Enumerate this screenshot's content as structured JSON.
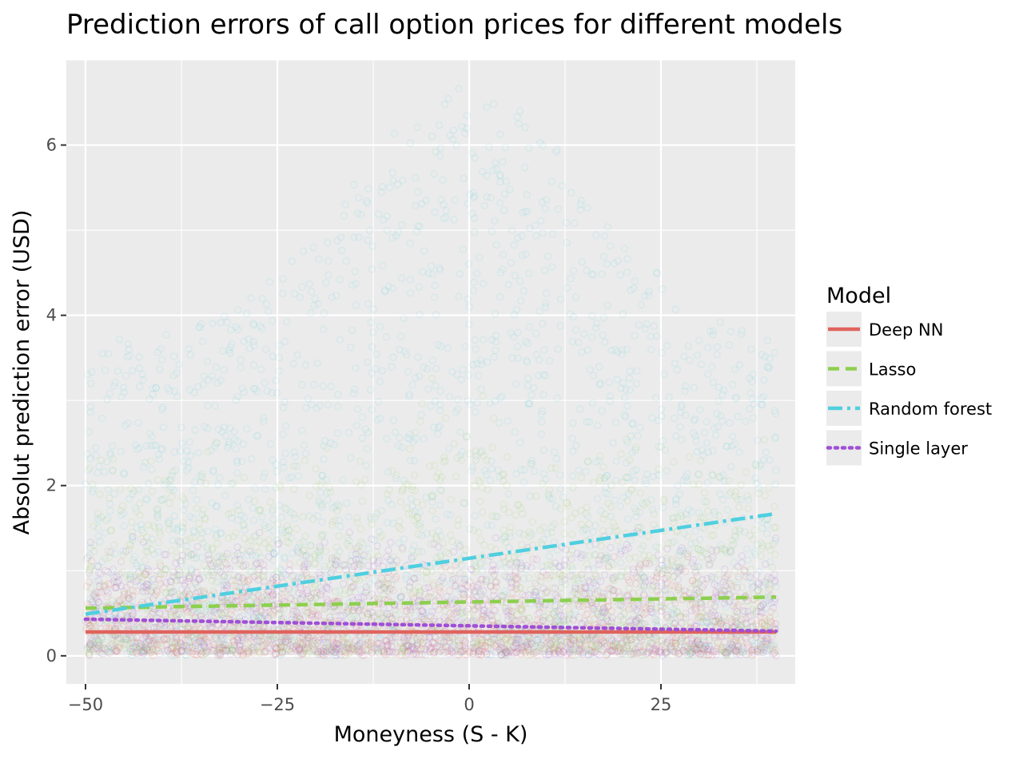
{
  "chart_data": {
    "type": "scatter",
    "title": "Prediction errors of call option prices for different models",
    "xlabel": "Moneyness (S - K)",
    "ylabel": "Absolut prediction error (USD)",
    "xlim": [
      -52.5,
      42.5
    ],
    "ylim": [
      -0.33,
      7.0
    ],
    "x_ticks": [
      -50,
      -25,
      0,
      25
    ],
    "x_tick_labels": [
      "−50",
      "−25",
      "0",
      "25"
    ],
    "y_ticks": [
      0,
      2,
      4,
      6
    ],
    "y_tick_labels": [
      "0",
      "2",
      "4",
      "6"
    ],
    "grid": true,
    "legend": {
      "title": "Model",
      "placement": "right",
      "items": [
        "Deep NN",
        "Lasso",
        "Random forest",
        "Single layer"
      ]
    },
    "series": [
      {
        "name": "Deep NN",
        "color": "#e0635d",
        "line_style": "solid",
        "trend_line": {
          "x": [
            -50,
            40
          ],
          "y": [
            0.28,
            0.28
          ]
        },
        "scatter_spread": {
          "x_range": [
            -50,
            40
          ],
          "typical_max": 1.2
        }
      },
      {
        "name": "Lasso",
        "color": "#8dcf4e",
        "line_style": "dashed",
        "trend_line": {
          "x": [
            -50,
            40
          ],
          "y": [
            0.56,
            0.69
          ]
        },
        "scatter_spread": {
          "x_range": [
            -50,
            40
          ],
          "typical_max": 2.5
        }
      },
      {
        "name": "Random forest",
        "color": "#4fcfdf",
        "line_style": "dashdot",
        "trend_line": {
          "x": [
            -50,
            40
          ],
          "y": [
            0.49,
            1.67
          ]
        },
        "scatter_spread": {
          "x_range": [
            -50,
            40
          ],
          "typical_max": 6.7
        }
      },
      {
        "name": "Single layer",
        "color": "#9f4fd6",
        "line_style": "dotted",
        "trend_line": {
          "x": [
            -50,
            40
          ],
          "y": [
            0.43,
            0.29
          ]
        },
        "scatter_spread": {
          "x_range": [
            -50,
            40
          ],
          "typical_max": 1.5
        }
      }
    ]
  }
}
